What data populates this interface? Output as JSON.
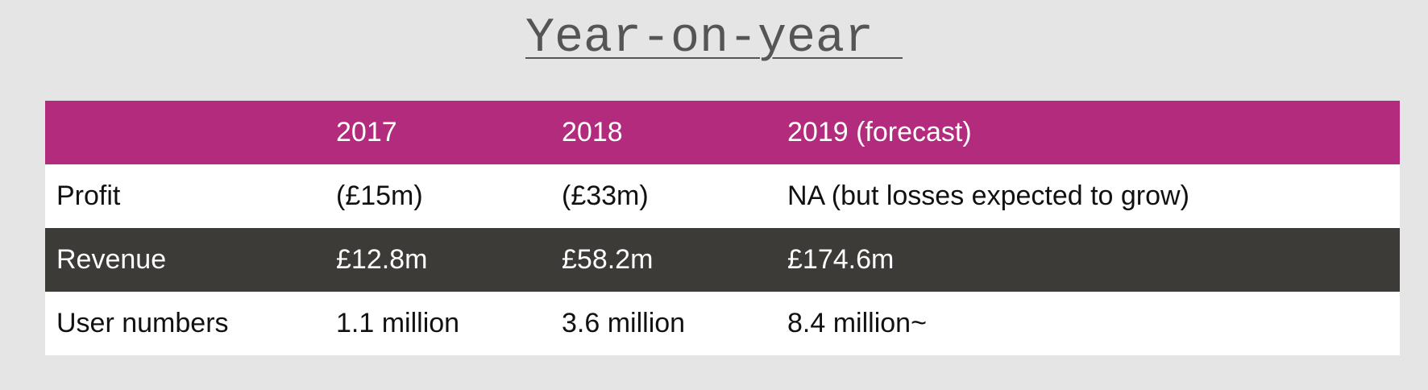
{
  "title": "Year-on-year ",
  "table": {
    "headers": [
      "",
      "2017",
      "2018",
      "2019 (forecast)"
    ],
    "rows": [
      {
        "label": "Profit",
        "values": [
          "(£15m)",
          "(£33m)",
          "NA (but losses expected to grow)"
        ]
      },
      {
        "label": "Revenue",
        "values": [
          "£12.8m",
          "£58.2m",
          "£174.6m"
        ]
      },
      {
        "label": "User numbers",
        "values": [
          "1.1 million",
          "3.6 million",
          "8.4 million~"
        ]
      }
    ]
  },
  "colors": {
    "background": "#e5e5e5",
    "header_row": "#b32b7c",
    "dark_row": "#3d3b37",
    "light_row": "#ffffff"
  }
}
